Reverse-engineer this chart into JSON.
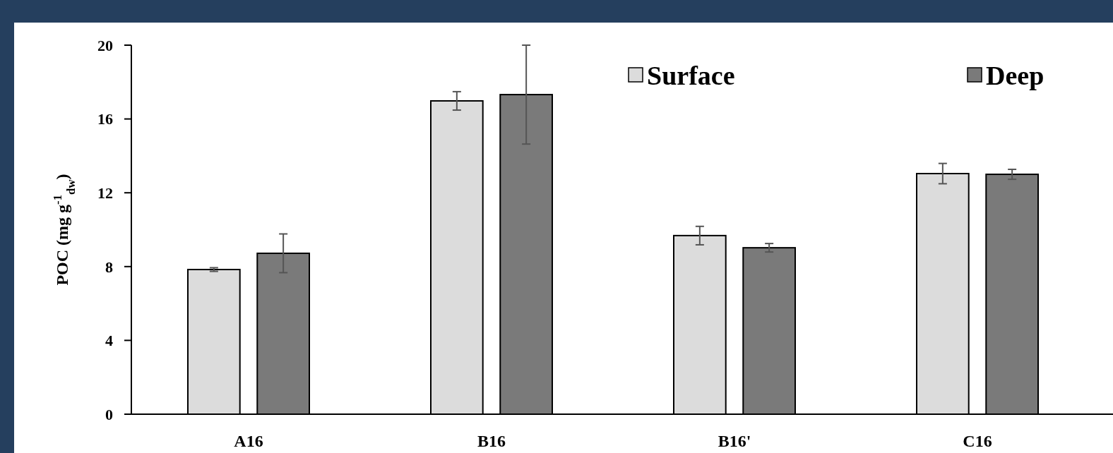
{
  "chart_data": {
    "type": "bar",
    "ylabel": "POC (mg g$^{-1}$$_{dw}$)",
    "categories": [
      "A16",
      "B16",
      "B16'",
      "C16"
    ],
    "series": [
      {
        "name": "Surface",
        "color": "#dcdcdc",
        "values": [
          7.84,
          16.98,
          9.68,
          13.04
        ],
        "errors": [
          0.1,
          0.5,
          0.5,
          0.55
        ]
      },
      {
        "name": "Deep",
        "color": "#7a7a7a",
        "values": [
          8.72,
          17.32,
          9.02,
          13.0
        ],
        "errors": [
          1.05,
          2.68,
          0.23,
          0.27
        ]
      }
    ],
    "ylim": [
      0,
      20
    ],
    "yticks": [
      0,
      4,
      8,
      12,
      16,
      20
    ],
    "grid": false,
    "legend": "top right"
  }
}
